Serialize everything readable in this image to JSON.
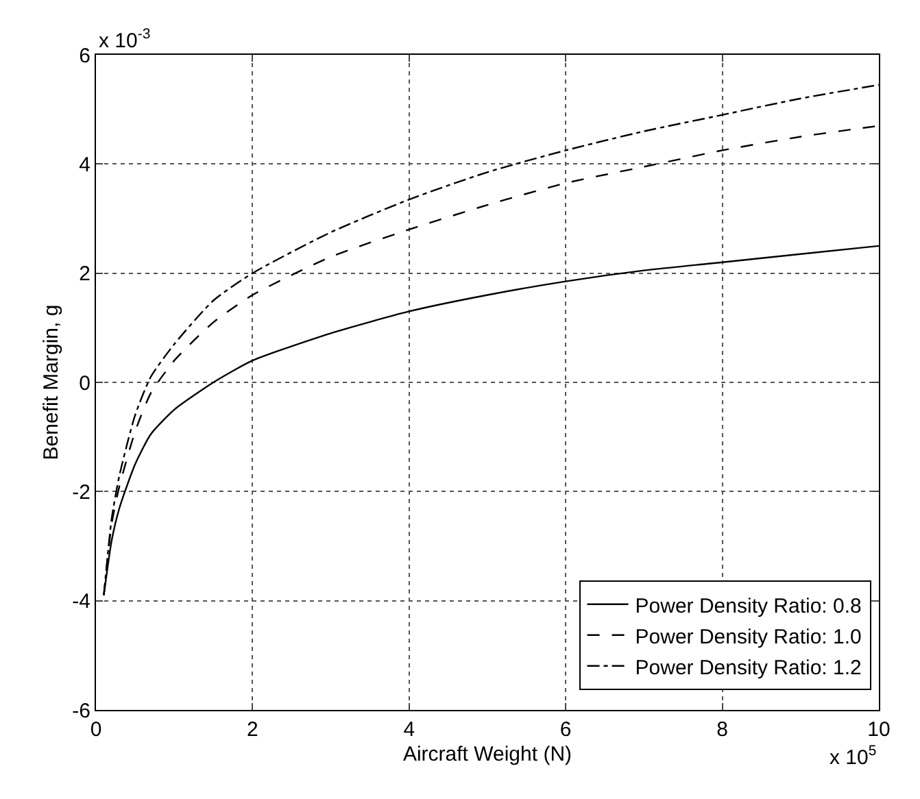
{
  "chart_data": {
    "type": "line",
    "xlabel": "Aircraft Weight (N)",
    "ylabel": "Benefit Margin, g",
    "x": [
      0.1,
      0.2,
      0.3,
      0.5,
      0.7,
      1,
      1.5,
      2,
      3,
      4,
      5,
      6,
      7,
      8,
      9,
      10
    ],
    "series": [
      {
        "name": "Power Density Ratio: 0.8",
        "color": "#000000",
        "line_style": "solid",
        "values": [
          -3.9,
          -2.9,
          -2.3,
          -1.5,
          -0.95,
          -0.5,
          0.0,
          0.4,
          0.9,
          1.3,
          1.6,
          1.85,
          2.05,
          2.2,
          2.35,
          2.5
        ]
      },
      {
        "name": "Power Density Ratio: 1.0",
        "color": "#000000",
        "line_style": "dashed",
        "values": [
          -3.9,
          -2.6,
          -1.9,
          -0.9,
          -0.2,
          0.4,
          1.1,
          1.6,
          2.3,
          2.8,
          3.25,
          3.65,
          3.95,
          4.25,
          4.5,
          4.7
        ]
      },
      {
        "name": "Power Density Ratio: 1.2",
        "color": "#000000",
        "line_style": "dashdot",
        "values": [
          -3.9,
          -2.5,
          -1.7,
          -0.6,
          0.1,
          0.7,
          1.5,
          2.0,
          2.75,
          3.35,
          3.85,
          4.25,
          4.6,
          4.9,
          5.2,
          5.45
        ]
      }
    ],
    "xlim": [
      0,
      10
    ],
    "xticks": [
      0,
      2,
      4,
      6,
      8,
      10
    ],
    "ylim": [
      -6,
      6
    ],
    "yticks": [
      -6,
      -4,
      -2,
      0,
      2,
      4,
      6
    ],
    "annotations": [
      "x 10$^{-3}$",
      "x 10$^{5}$"
    ],
    "grid": true,
    "legend": "bottom right",
    "marker": "none"
  }
}
